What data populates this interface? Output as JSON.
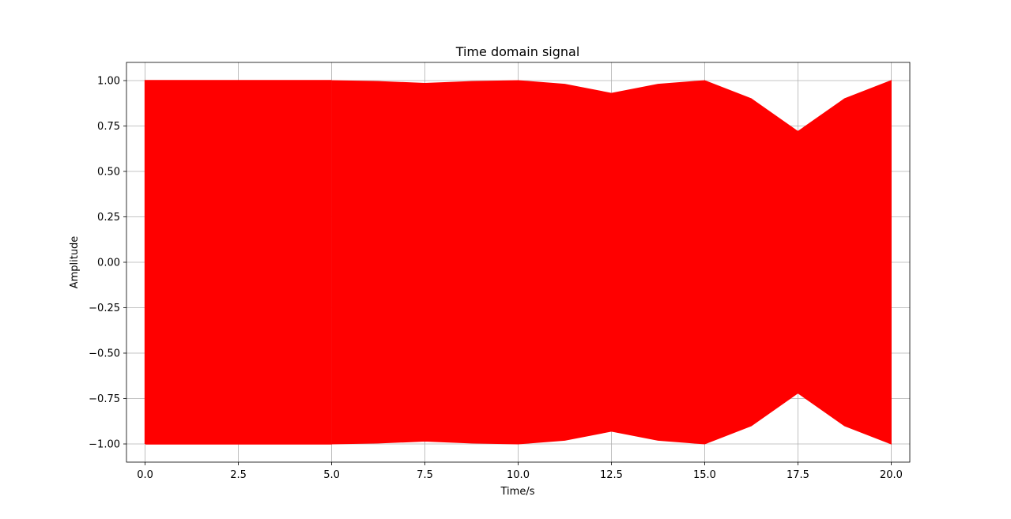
{
  "chart_data": {
    "type": "line",
    "title": "Time domain signal",
    "xlabel": "Time/s",
    "ylabel": "Amplitude",
    "xlim": [
      -0.5,
      20.5
    ],
    "ylim": [
      -1.1,
      1.1
    ],
    "xticks": [
      0.0,
      2.5,
      5.0,
      7.5,
      10.0,
      12.5,
      15.0,
      17.5,
      20.0
    ],
    "xtick_labels": [
      "0.0",
      "2.5",
      "5.0",
      "7.5",
      "10.0",
      "12.5",
      "15.0",
      "17.5",
      "20.0"
    ],
    "yticks": [
      1.0,
      0.75,
      0.5,
      0.25,
      0.0,
      -0.25,
      -0.5,
      -0.75,
      -1.0
    ],
    "ytick_labels": [
      "1.00",
      "0.75",
      "0.50",
      "0.25",
      "0.00",
      "−0.25",
      "−0.50",
      "−0.75",
      "−1.00"
    ],
    "grid": true,
    "color": "#ff0000",
    "series": [
      {
        "segment": "oscillation",
        "x_range": [
          0,
          5
        ],
        "amplitude": 1.0,
        "cycles": 100
      },
      {
        "segment": "dense",
        "x_range": [
          5,
          20
        ],
        "envelope": {
          "x": [
            5.0,
            6.25,
            7.5,
            8.75,
            10.0,
            11.25,
            12.5,
            13.75,
            15.0,
            16.25,
            17.5,
            18.75,
            20.0
          ],
          "upper": [
            1.0,
            0.995,
            0.985,
            0.995,
            1.0,
            0.98,
            0.93,
            0.98,
            1.0,
            0.9,
            0.72,
            0.9,
            1.0
          ],
          "lower": [
            -1.0,
            -0.995,
            -0.985,
            -0.995,
            -1.0,
            -0.98,
            -0.93,
            -0.98,
            -1.0,
            -0.9,
            -0.72,
            -0.9,
            -1.0
          ]
        }
      }
    ]
  }
}
